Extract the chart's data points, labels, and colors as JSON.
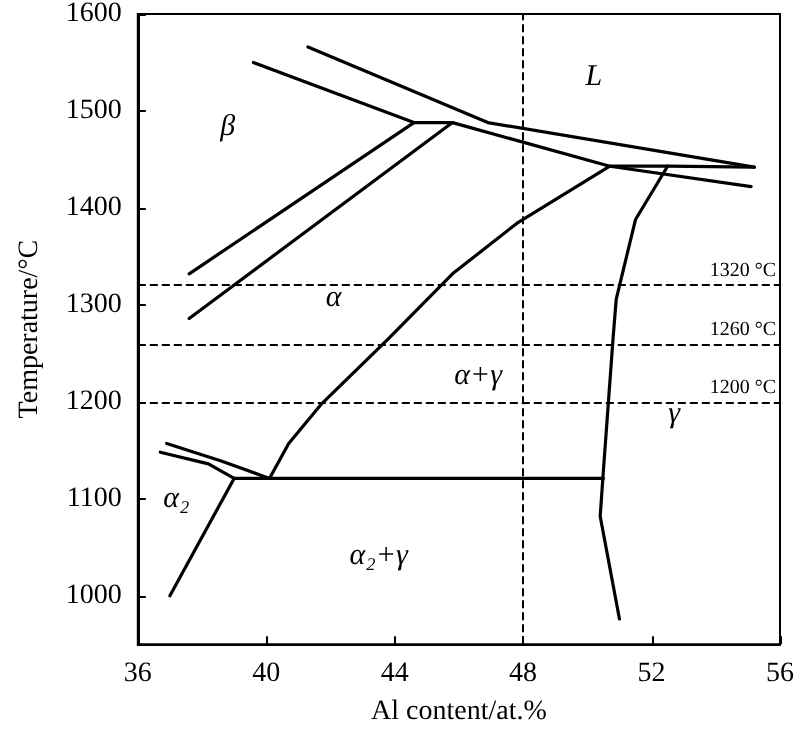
{
  "chart_data": {
    "type": "line",
    "xlabel": "Al content/at.%",
    "ylabel": "Temperature/°C",
    "xlim": [
      36,
      56
    ],
    "ylim": [
      950,
      1600
    ],
    "xticks": [
      36,
      40,
      44,
      48,
      52,
      56
    ],
    "yticks": [
      1000,
      1100,
      1200,
      1300,
      1400,
      1500,
      1600
    ],
    "grid": false,
    "marker": "none",
    "line_style": "solid",
    "series": [
      {
        "color": "#000000",
        "x": [
          41.3,
          46.9,
          55.2
        ],
        "values": [
          1566,
          1488,
          1442
        ]
      },
      {
        "color": "#000000",
        "x": [
          39.6,
          44.6,
          45.8,
          50.7,
          55.1
        ],
        "values": [
          1550,
          1488,
          1488,
          1443,
          1422
        ]
      },
      {
        "color": "#000000",
        "x": [
          50.7,
          52.5,
          55.2
        ],
        "values": [
          1443,
          1443,
          1442
        ]
      },
      {
        "color": "#000000",
        "x": [
          37.6,
          44.6
        ],
        "values": [
          1332,
          1488
        ]
      },
      {
        "color": "#000000",
        "x": [
          37.6,
          45.8
        ],
        "values": [
          1286,
          1488
        ]
      },
      {
        "color": "#000000",
        "x": [
          50.7,
          47.8,
          45.8,
          43.8,
          41.7,
          40.7,
          40.1
        ],
        "values": [
          1443,
          1384,
          1332,
          1265,
          1197,
          1157,
          1121
        ]
      },
      {
        "color": "#000000",
        "x": [
          52.5,
          51.5,
          50.9,
          50.8,
          50.5,
          50.4,
          51.0
        ],
        "values": [
          1443,
          1388,
          1306,
          1265,
          1129,
          1082,
          976
        ]
      },
      {
        "color": "#000000",
        "x": [
          39.0,
          50.5
        ],
        "values": [
          1121,
          1121
        ]
      },
      {
        "color": "#000000",
        "x": [
          37.0,
          39.0
        ],
        "values": [
          1000,
          1121
        ]
      },
      {
        "color": "#000000",
        "x": [
          36.9,
          38.6,
          40.1
        ],
        "values": [
          1157,
          1139,
          1121
        ]
      },
      {
        "color": "#000000",
        "x": [
          36.7,
          38.2,
          39.0
        ],
        "values": [
          1148,
          1136,
          1121
        ]
      }
    ],
    "ref_lines": [
      {
        "axis": "x",
        "value": 48,
        "label": null,
        "color": "#000000",
        "line_style": "dashed"
      },
      {
        "axis": "y",
        "value": 1320,
        "label": "1320 °C",
        "color": "#000000",
        "line_style": "dashed"
      },
      {
        "axis": "y",
        "value": 1260,
        "label": "1260 °C",
        "color": "#000000",
        "line_style": "dashed"
      },
      {
        "axis": "y",
        "value": 1200,
        "label": "1200 °C",
        "color": "#000000",
        "line_style": "dashed"
      }
    ],
    "annotations": [
      "β",
      "L",
      "α",
      "α+γ",
      "γ",
      "α₂",
      "α₂+γ"
    ]
  }
}
